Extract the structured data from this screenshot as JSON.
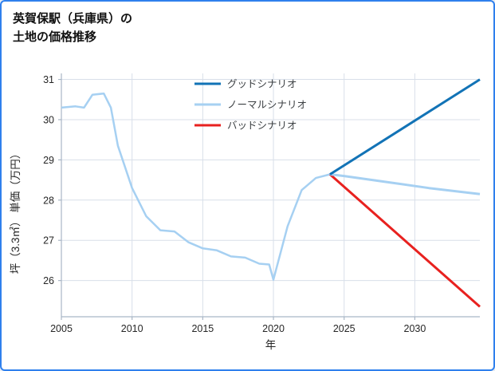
{
  "title": {
    "line1": "英賀保駅（兵庫県）の",
    "line2": "土地の価格推移"
  },
  "chart_data": {
    "type": "line",
    "title": "英賀保駅（兵庫県）の 土地の価格推移",
    "xlabel": "年",
    "ylabel": "坪（3.3㎡） 単価（万円）",
    "xlim": [
      2005,
      2034.6
    ],
    "ylim": [
      25.1,
      31.15
    ],
    "xticks": [
      2005,
      2010,
      2015,
      2020,
      2025,
      2030
    ],
    "yticks": [
      26,
      27,
      28,
      29,
      30,
      31
    ],
    "grid": true,
    "legend_position": "upper-center-inside",
    "colors": {
      "good": "#1273b6",
      "normal": "#a6d0f2",
      "bad": "#e8211f",
      "grid": "#d8dfe9",
      "spine": "#a9b6c6",
      "tick_text": "#262626",
      "legend_text": "#3c4043"
    },
    "legend": [
      {
        "label": "グッドシナリオ",
        "color": "#1273b6"
      },
      {
        "label": "ノーマルシナリオ",
        "color": "#a6d0f2"
      },
      {
        "label": "バッドシナリオ",
        "color": "#e8211f"
      }
    ],
    "series": [
      {
        "name": "実績（ノーマルシナリオ）",
        "color": "#a6d0f2",
        "width": 2.5,
        "x": [
          2005,
          2006,
          2006.6,
          2007.2,
          2008,
          2008.5,
          2009,
          2010,
          2011,
          2012,
          2013,
          2014,
          2015,
          2016,
          2017,
          2018,
          2019,
          2019.7,
          2020,
          2021,
          2022,
          2023,
          2024
        ],
        "y": [
          30.3,
          30.33,
          30.3,
          30.62,
          30.65,
          30.3,
          29.35,
          28.3,
          27.6,
          27.25,
          27.22,
          26.95,
          26.8,
          26.75,
          26.6,
          26.57,
          26.42,
          26.4,
          26.02,
          27.35,
          28.25,
          28.55,
          28.64
        ]
      },
      {
        "name": "バッドシナリオ",
        "color": "#e8211f",
        "width": 3,
        "x": [
          2024,
          2034.6
        ],
        "y": [
          28.64,
          25.35
        ]
      },
      {
        "name": "ノーマルシナリオ",
        "color": "#a6d0f2",
        "width": 3,
        "x": [
          2024,
          2025,
          2028,
          2031,
          2034.6
        ],
        "y": [
          28.64,
          28.6,
          28.45,
          28.3,
          28.15
        ]
      },
      {
        "name": "グッドシナリオ",
        "color": "#1273b6",
        "width": 3,
        "x": [
          2024,
          2034.6
        ],
        "y": [
          28.64,
          31.0
        ]
      }
    ]
  }
}
